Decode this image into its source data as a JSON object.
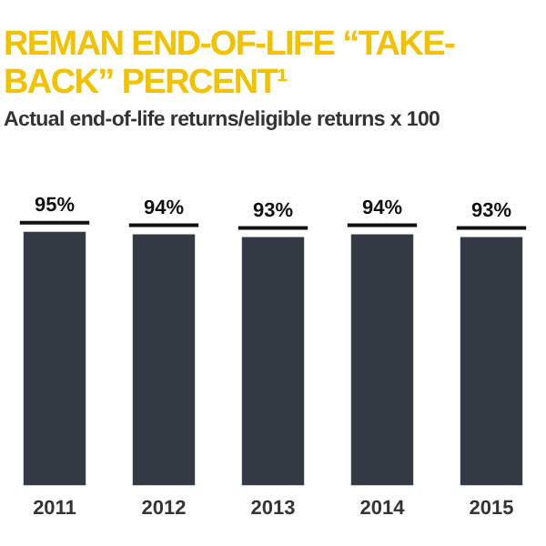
{
  "chart_data": {
    "type": "bar",
    "title": "REMAN END-OF-LIFE “TAKE-BACK” PERCENT¹",
    "subtitle": "Actual end-of-life returns/eligible returns x 100",
    "categories": [
      "2011",
      "2012",
      "2013",
      "2014",
      "2015"
    ],
    "values": [
      95,
      94,
      93,
      94,
      93
    ],
    "value_labels": [
      "95%",
      "94%",
      "93%",
      "94%",
      "93%"
    ],
    "color": "#343a44",
    "grid": false,
    "legend": false
  }
}
